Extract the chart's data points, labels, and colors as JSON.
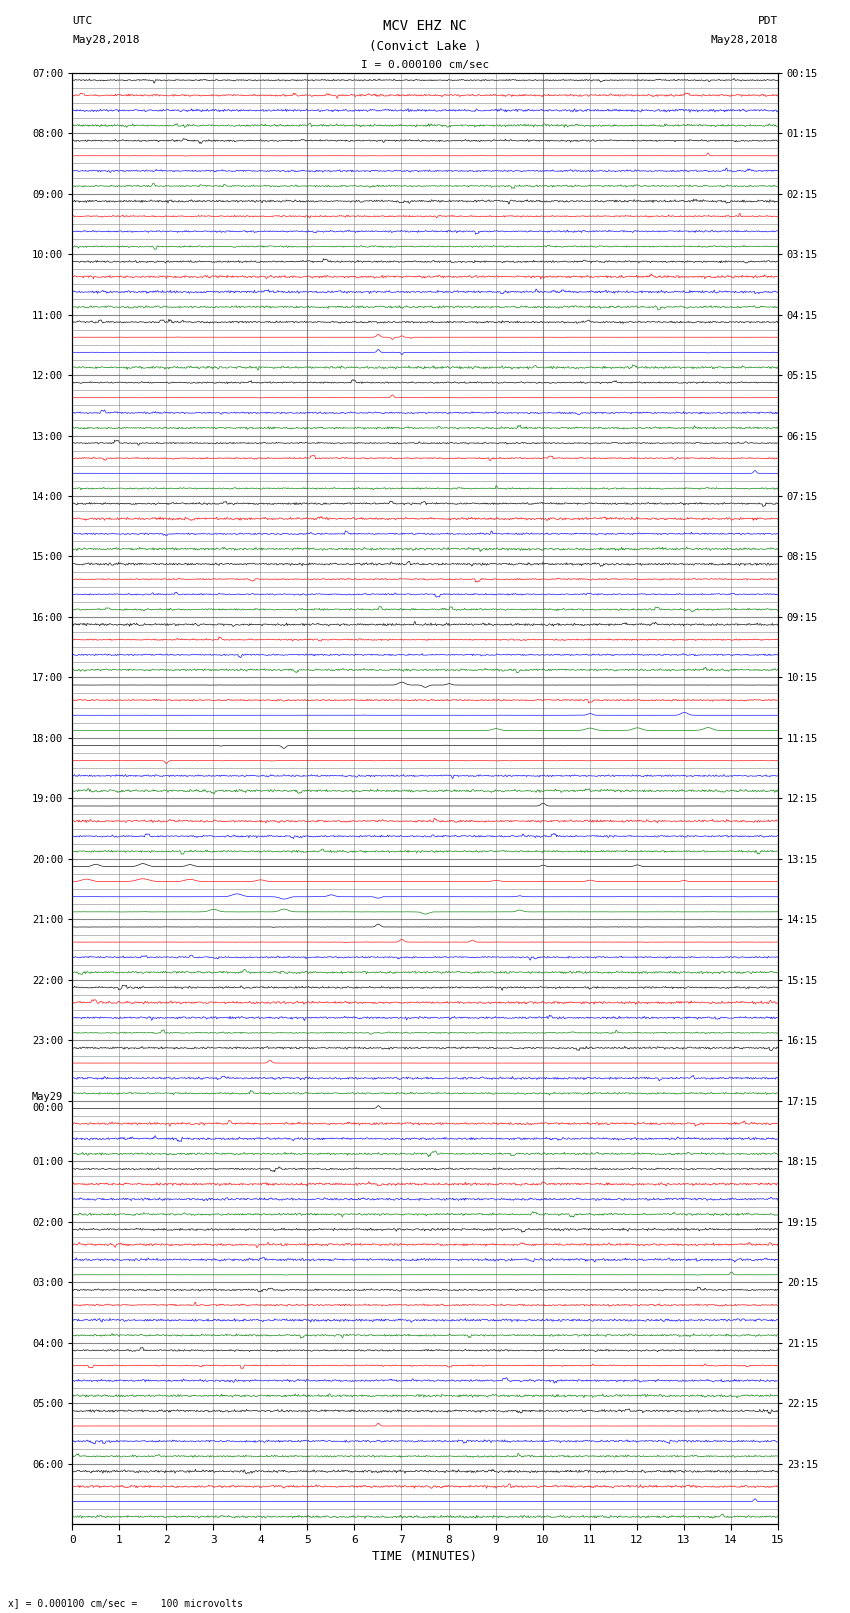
{
  "title_line1": "MCV EHZ NC",
  "title_line2": "(Convict Lake )",
  "scale_label": "I = 0.000100 cm/sec",
  "left_label_top": "UTC",
  "left_label_date": "May28,2018",
  "right_label_top": "PDT",
  "right_label_date": "May28,2018",
  "xlabel": "TIME (MINUTES)",
  "bottom_note": "x] = 0.000100 cm/sec =    100 microvolts",
  "xlim": [
    0,
    15
  ],
  "bg_color": "#ffffff",
  "grid_color": "#888888",
  "utc_hour_labels": [
    "07:00",
    "08:00",
    "09:00",
    "10:00",
    "11:00",
    "12:00",
    "13:00",
    "14:00",
    "15:00",
    "16:00",
    "17:00",
    "18:00",
    "19:00",
    "20:00",
    "21:00",
    "22:00",
    "23:00",
    "May29\n00:00",
    "01:00",
    "02:00",
    "03:00",
    "04:00",
    "05:00",
    "06:00"
  ],
  "pdt_hour_labels": [
    "00:15",
    "01:15",
    "02:15",
    "03:15",
    "04:15",
    "05:15",
    "06:15",
    "07:15",
    "08:15",
    "09:15",
    "10:15",
    "11:15",
    "12:15",
    "13:15",
    "14:15",
    "15:15",
    "16:15",
    "17:15",
    "18:15",
    "19:15",
    "20:15",
    "21:15",
    "22:15",
    "23:15"
  ],
  "n_hours": 24,
  "traces_per_hour": 4,
  "trace_colors": [
    "black",
    "red",
    "blue",
    "green"
  ]
}
